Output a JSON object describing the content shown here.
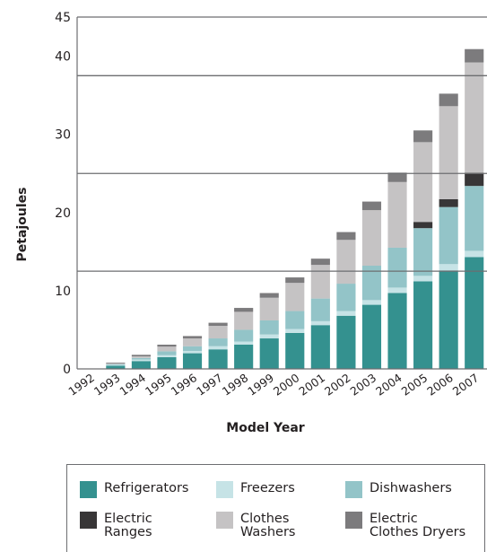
{
  "chart_data": {
    "type": "bar",
    "stacked": true,
    "categories": [
      "1992",
      "1993",
      "1994",
      "1995",
      "1996",
      "1997",
      "1998",
      "1999",
      "2000",
      "2001",
      "2002",
      "2003",
      "2004",
      "2005",
      "2006",
      "2007"
    ],
    "series": [
      {
        "name": "Refrigerators",
        "color": "#34918f",
        "values": [
          0,
          0.4,
          1.0,
          1.5,
          2.0,
          2.5,
          3.1,
          3.9,
          4.6,
          5.6,
          6.8,
          8.2,
          9.7,
          11.2,
          12.6,
          14.3
        ]
      },
      {
        "name": "Freezers",
        "color": "#c6e3e6",
        "values": [
          0,
          0.1,
          0.2,
          0.25,
          0.3,
          0.4,
          0.4,
          0.5,
          0.5,
          0.5,
          0.6,
          0.6,
          0.7,
          0.7,
          0.8,
          0.8
        ]
      },
      {
        "name": "Dishwashers",
        "color": "#93c4c8",
        "values": [
          0,
          0.1,
          0.2,
          0.5,
          0.6,
          1.0,
          1.5,
          1.8,
          2.3,
          2.9,
          3.5,
          4.4,
          5.1,
          6.1,
          7.3,
          8.3
        ]
      },
      {
        "name": "Electric\nRanges",
        "color": "#383637",
        "values": [
          0,
          0,
          0,
          0,
          0,
          0,
          0,
          0,
          0,
          0,
          0,
          0,
          0,
          0.8,
          1.0,
          1.7
        ]
      },
      {
        "name": "Clothes\nWashers",
        "color": "#c5c3c4",
        "values": [
          0,
          0.1,
          0.2,
          0.6,
          1.0,
          1.6,
          2.3,
          2.9,
          3.6,
          4.3,
          5.6,
          7.1,
          8.4,
          10.2,
          11.9,
          14.1
        ]
      },
      {
        "name": "Electric\nClothes Dryers",
        "color": "#7c7b7d",
        "values": [
          0,
          0.1,
          0.2,
          0.25,
          0.3,
          0.4,
          0.5,
          0.6,
          0.7,
          0.8,
          1.0,
          1.1,
          1.2,
          1.5,
          1.6,
          1.7
        ]
      }
    ],
    "ylabel": "Petajoules",
    "xlabel": "Model Year",
    "ylim": [
      0,
      45
    ],
    "yticks": [
      0,
      10,
      20,
      30,
      40,
      45
    ],
    "grid": false,
    "legend": "bottom",
    "legend_order": [
      0,
      1,
      2,
      3,
      4,
      5
    ]
  }
}
